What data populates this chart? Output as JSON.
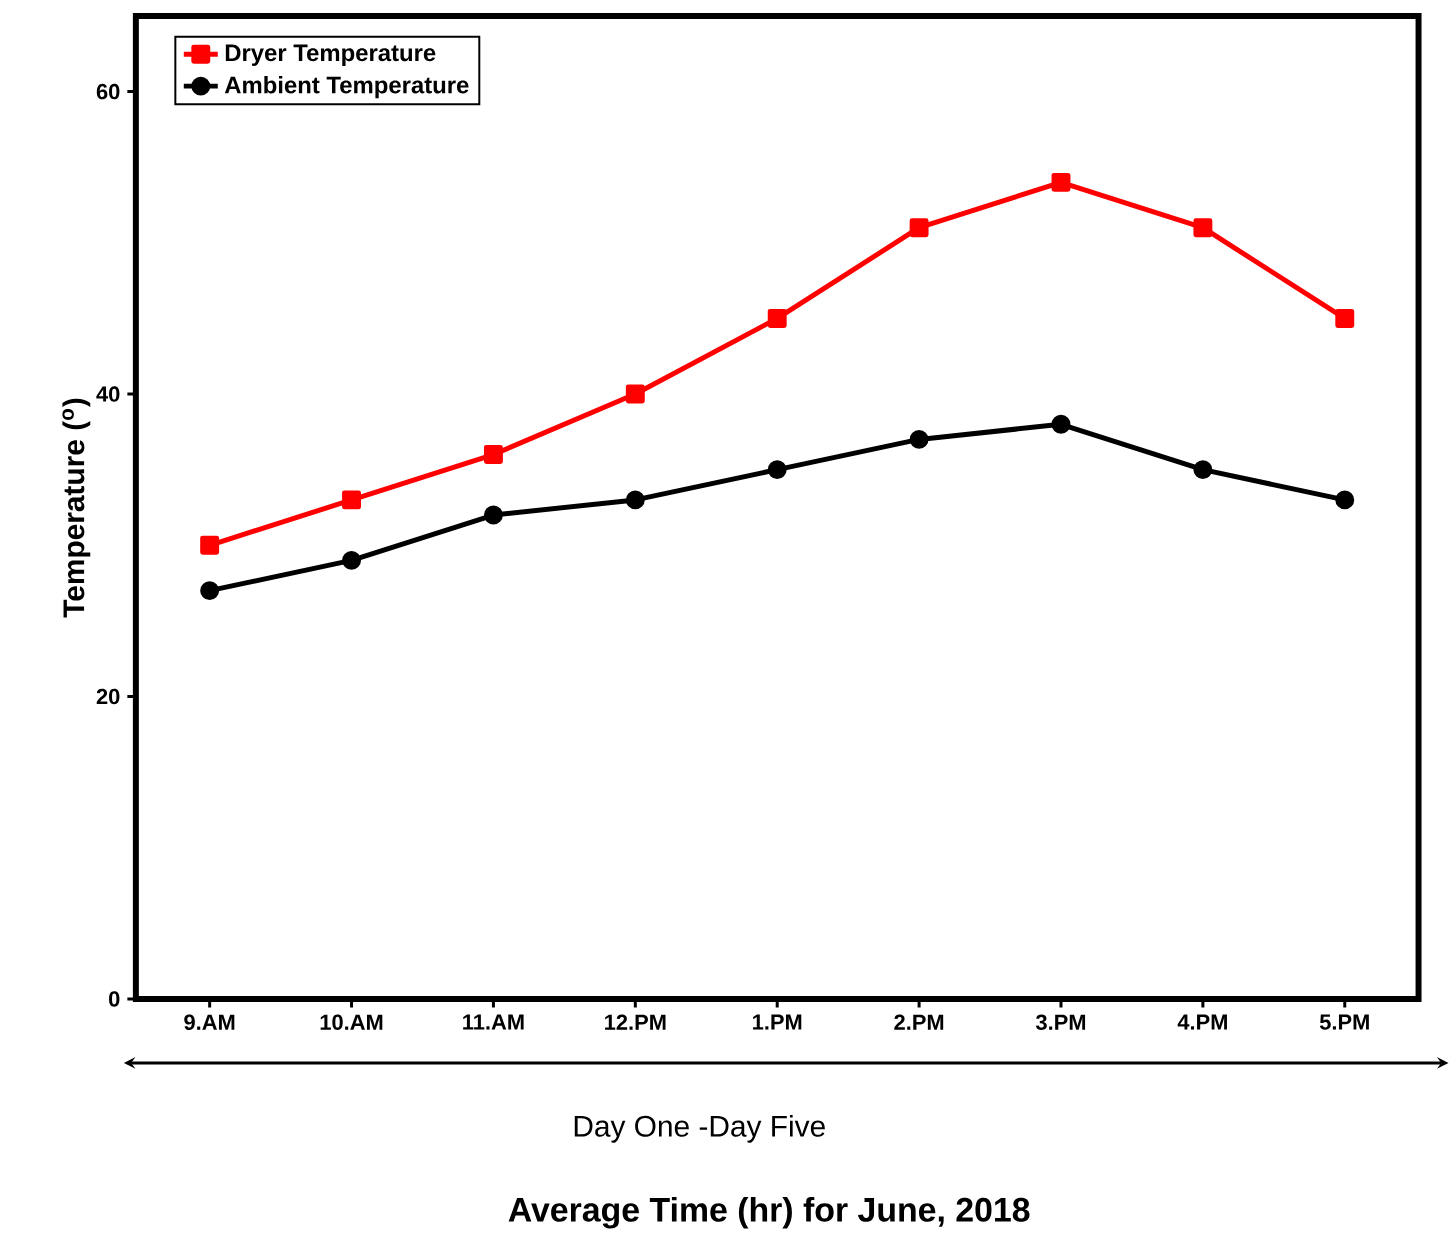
{
  "chart_data": {
    "type": "line",
    "xlabel": "Average Time (hr) for June, 2018",
    "ylabel": "Temperature ($^{o}$)",
    "categories": [
      "9.AM",
      "10.AM",
      "11.AM",
      "12.PM",
      "1.PM",
      "2.PM",
      "3.PM",
      "4.PM",
      "5.PM"
    ],
    "series": [
      {
        "name": "Dryer Temperature",
        "color": "#ff0000",
        "marker": "square",
        "values": [
          30,
          33,
          36,
          40,
          45,
          51,
          54,
          51,
          45
        ]
      },
      {
        "name": "Ambient Temperature",
        "color": "#000000",
        "marker": "circle",
        "values": [
          27,
          29,
          32,
          33,
          35,
          37,
          38,
          35,
          33
        ]
      }
    ],
    "ylim": [
      0,
      65
    ],
    "yticks": [
      0,
      20,
      40,
      60
    ],
    "legend": "top left",
    "line_style": "solid",
    "grid": false,
    "annotations": [
      "Day One -Day Five"
    ]
  }
}
